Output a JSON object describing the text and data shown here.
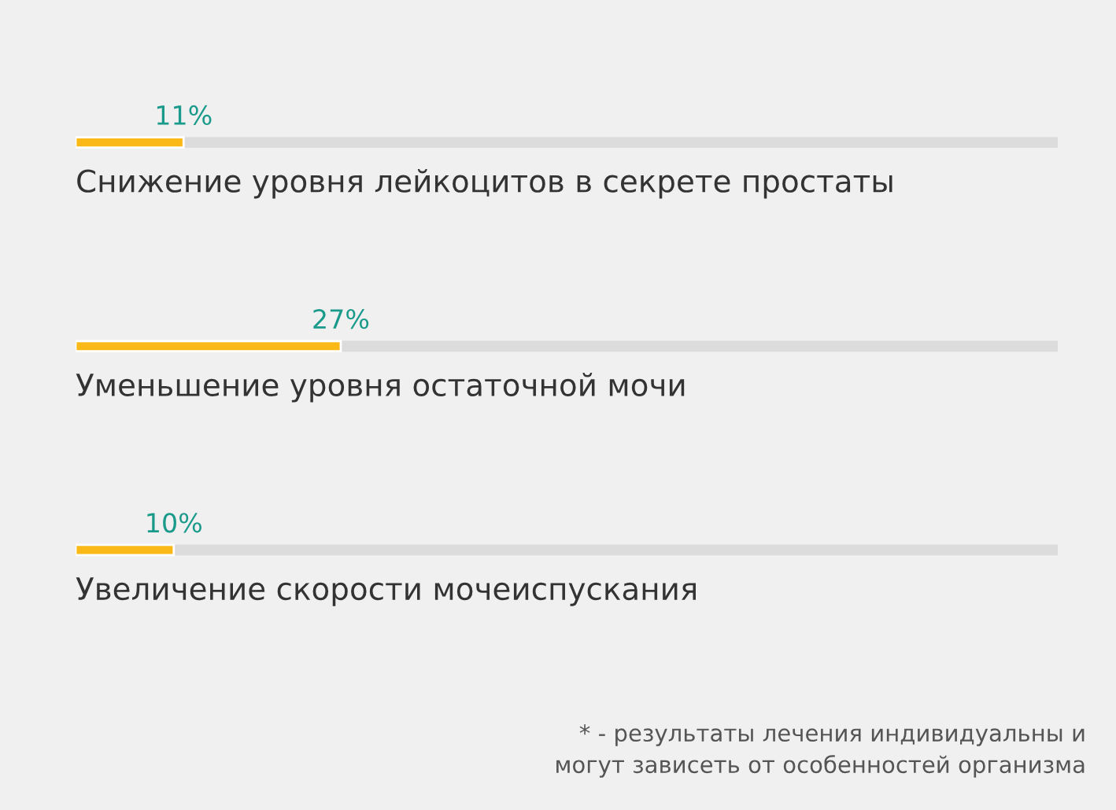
{
  "chart_data": {
    "type": "bar",
    "orientation": "horizontal",
    "xlim": [
      0,
      100
    ],
    "tick_labels": false,
    "grid": "y",
    "categories": [
      "Снижение уровня лейкоцитов в секрете простаты",
      "Уменьшение уровня остаточной мочи",
      "Увеличение скорости мочеиспускания"
    ],
    "series": [
      {
        "color": "#fbb917",
        "values": [
          11,
          27,
          10
        ],
        "value_labels": [
          "11%",
          "27%",
          "10%"
        ]
      }
    ],
    "annotations": [
      "* - результаты лечения индивидуальны и\nмогут зависеть от особенностей организма"
    ]
  }
}
